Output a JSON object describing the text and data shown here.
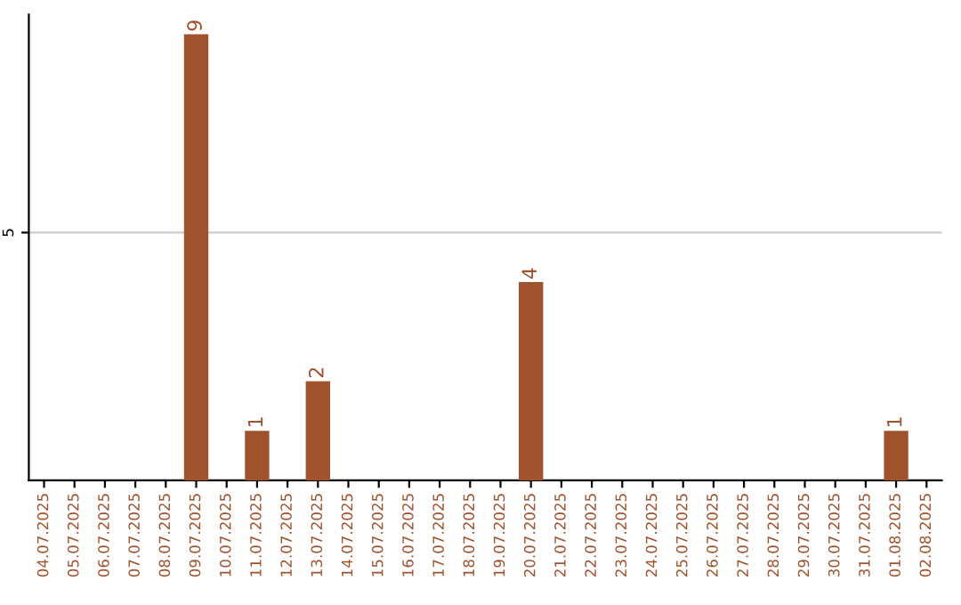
{
  "chart_data": {
    "type": "bar",
    "categories": [
      "04.07.2025",
      "05.07.2025",
      "06.07.2025",
      "07.07.2025",
      "08.07.2025",
      "09.07.2025",
      "10.07.2025",
      "11.07.2025",
      "12.07.2025",
      "13.07.2025",
      "14.07.2025",
      "15.07.2025",
      "16.07.2025",
      "17.07.2025",
      "18.07.2025",
      "19.07.2025",
      "20.07.2025",
      "21.07.2025",
      "22.07.2025",
      "23.07.2025",
      "24.07.2025",
      "25.07.2025",
      "26.07.2025",
      "27.07.2025",
      "28.07.2025",
      "29.07.2025",
      "30.07.2025",
      "31.07.2025",
      "01.08.2025",
      "02.08.2025"
    ],
    "values": [
      0,
      0,
      0,
      0,
      0,
      9,
      0,
      1,
      0,
      2,
      0,
      0,
      0,
      0,
      0,
      0,
      4,
      0,
      0,
      0,
      0,
      0,
      0,
      0,
      0,
      0,
      0,
      0,
      1,
      0
    ],
    "value_labels": [
      null,
      null,
      null,
      null,
      null,
      "9",
      null,
      "1",
      null,
      "2",
      null,
      null,
      null,
      null,
      null,
      null,
      "4",
      null,
      null,
      null,
      null,
      null,
      null,
      null,
      null,
      null,
      null,
      null,
      "1",
      null
    ],
    "color": "#a0522d",
    "ylim": [
      0,
      9.4
    ],
    "yticks": [
      5
    ],
    "grid": "y",
    "legend": false
  }
}
